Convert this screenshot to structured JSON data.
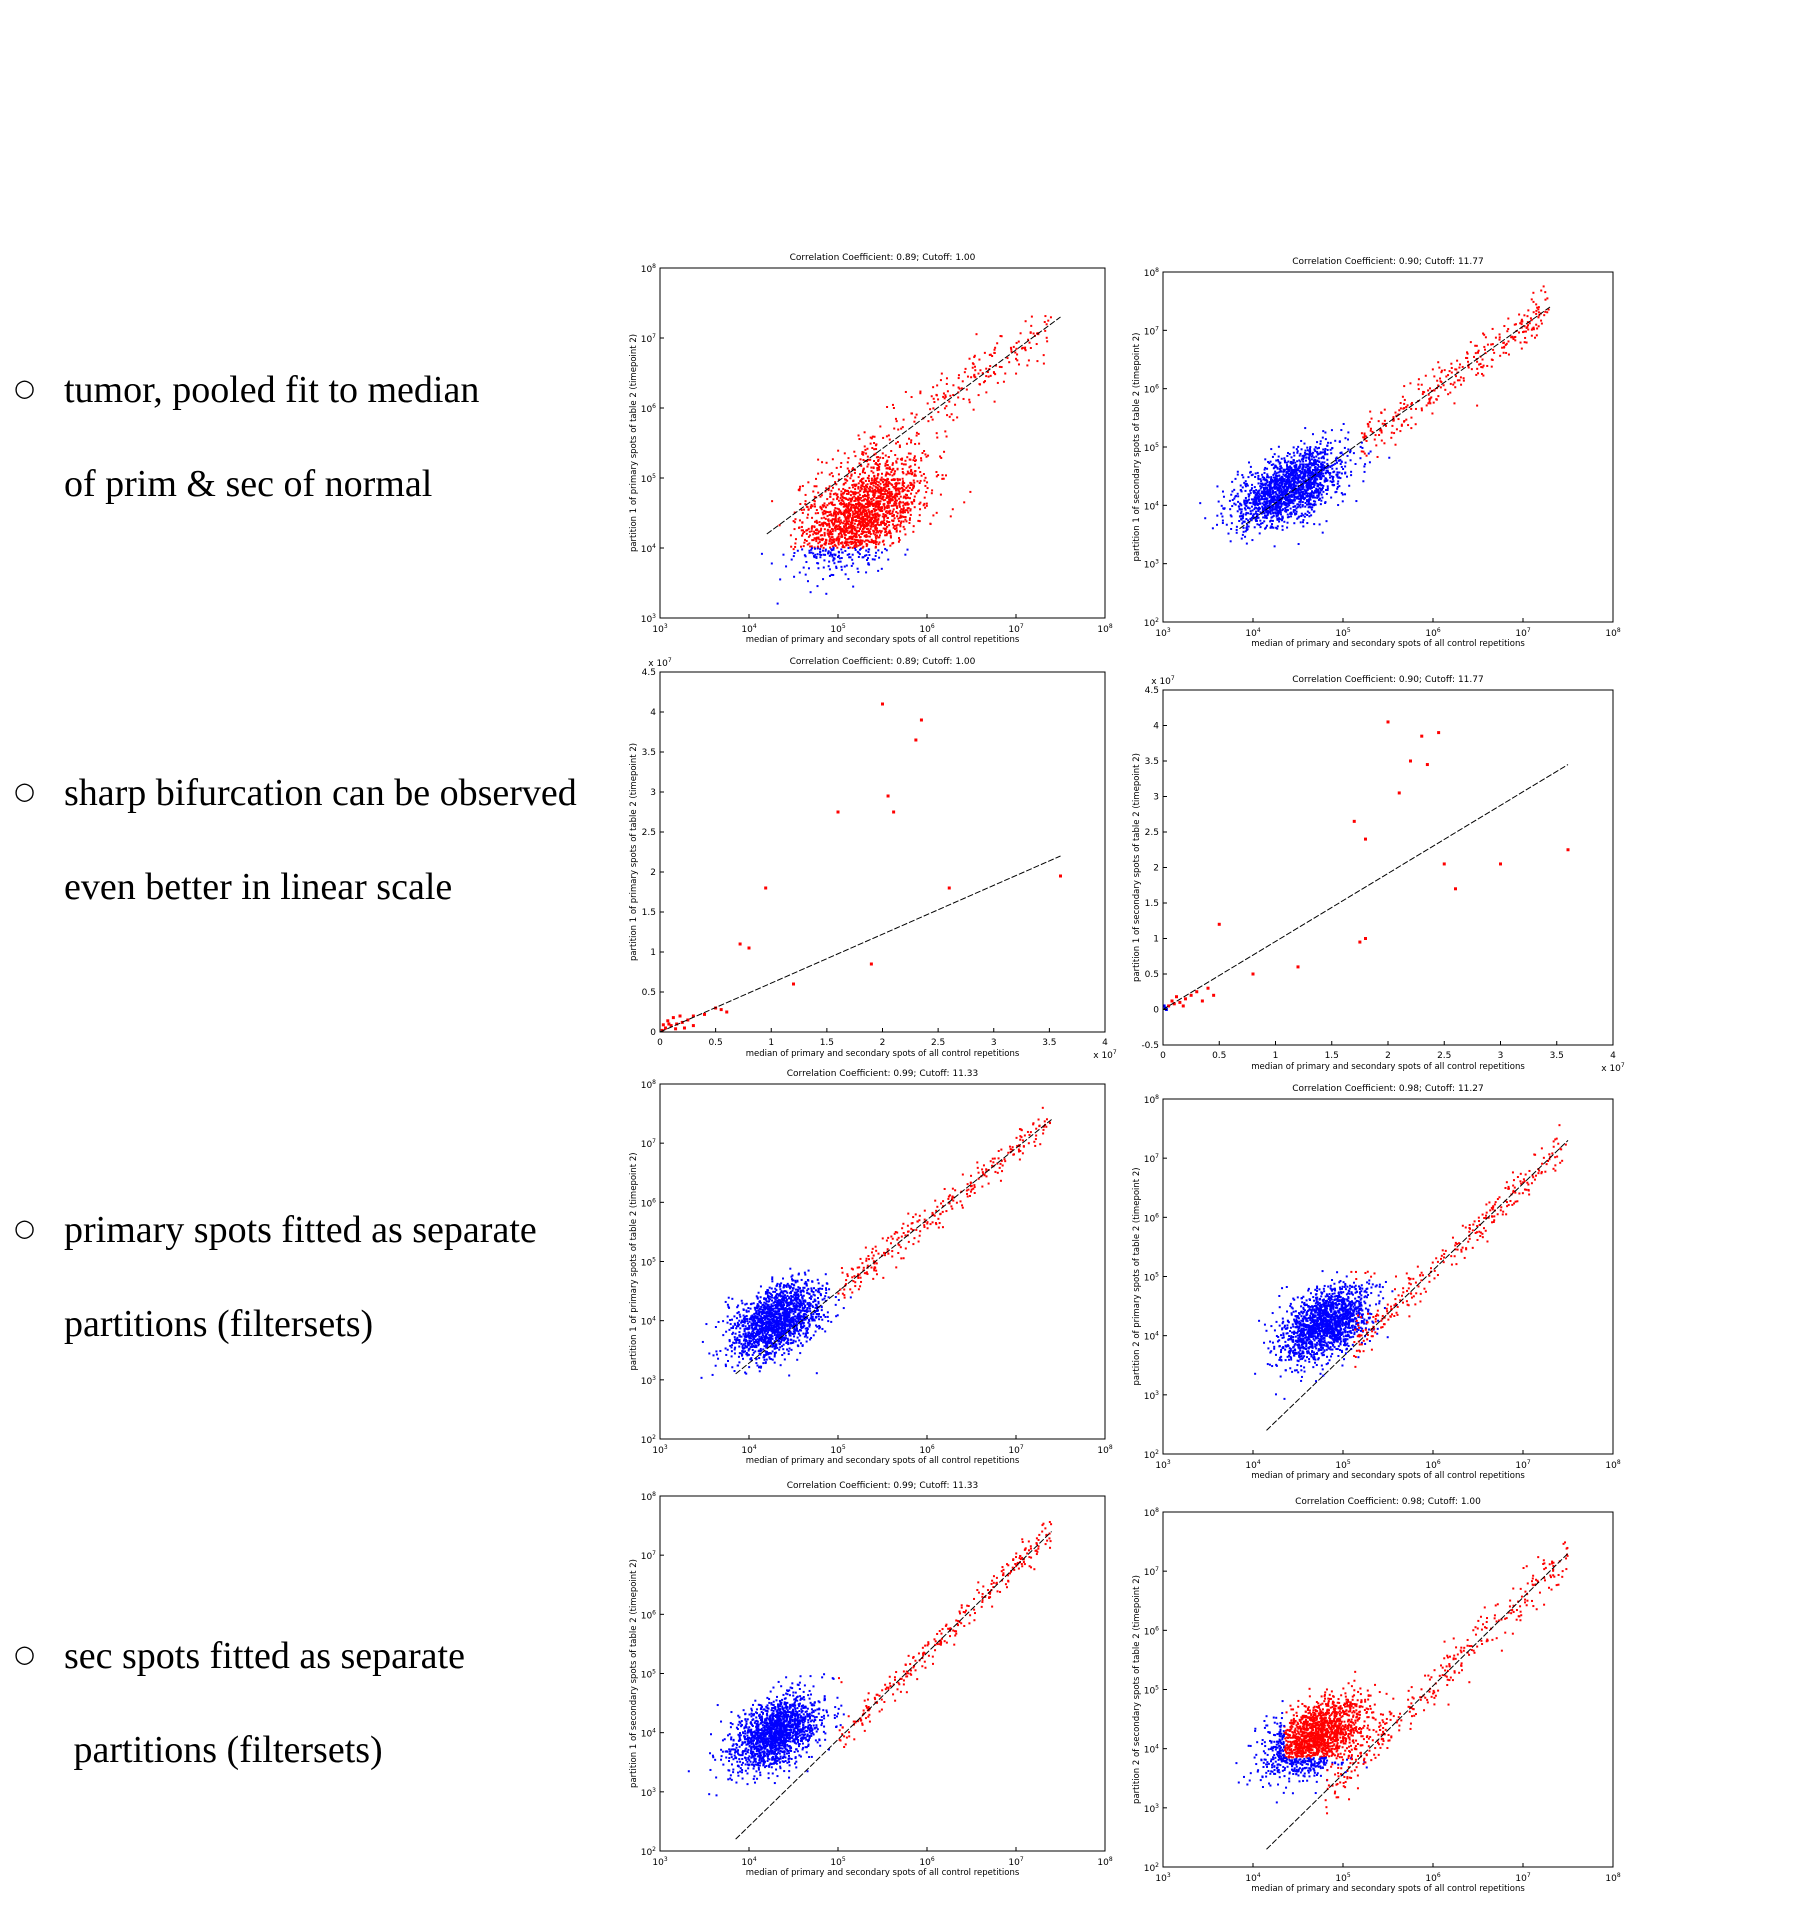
{
  "bullets": [
    {
      "marker": "○",
      "lines": [
        "tumor, pooled fit to median",
        "of prim & sec of normal"
      ]
    },
    {
      "marker": "○",
      "lines": [
        "sharp bifurcation can be observed",
        "even better in linear scale"
      ]
    },
    {
      "marker": "○",
      "lines": [
        "primary spots fitted as separate",
        "partitions (filtersets)"
      ]
    },
    {
      "marker": "○",
      "lines": [
        "sec spots fitted as separate",
        " partitions (filtersets)"
      ]
    }
  ],
  "colors": {
    "high": "#ff0000",
    "low": "#0000ff",
    "fit": "#000000",
    "axis": "#000000"
  },
  "chart_data": [
    {
      "id": "r1c1",
      "type": "scatter",
      "scale": "log",
      "title": "Correlation Coefficient: 0.89; Cutoff: 1.00",
      "xlabel": "median of primary and secondary spots of all control repetitions",
      "ylabel": "partition 1 of primary spots of table 2 (timepoint 2)",
      "xlim": [
        1000,
        100000000
      ],
      "ylim": [
        1000,
        100000000
      ],
      "xticks": [
        "10^3",
        "10^4",
        "10^5",
        "10^6",
        "10^7",
        "10^8"
      ],
      "yticks": [
        "10^3",
        "10^4",
        "10^5",
        "10^6",
        "10^7",
        "10^8"
      ],
      "cluster": {
        "center": [
          5.3,
          4.5
        ],
        "spread": [
          0.33,
          0.3
        ],
        "count": 1800
      },
      "cutoff": [
        4.0,
        4.0
      ],
      "split_rule": "box",
      "tail": {
        "from": 4.5,
        "to": 7.4,
        "count": 320,
        "spread": 0.22
      },
      "fit": [
        [
          4.2,
          4.2
        ],
        [
          7.5,
          7.3
        ]
      ],
      "legend": "none"
    },
    {
      "id": "r1c2",
      "type": "scatter",
      "scale": "log",
      "title": "Correlation Coefficient: 0.90; Cutoff: 11.77",
      "xlabel": "median of primary and secondary spots of all control repetitions",
      "ylabel": "partition 1 of secondary spots of table 2 (timepoint 2)",
      "xlim": [
        1000,
        100000000
      ],
      "ylim": [
        100,
        100000000
      ],
      "xticks": [
        "10^3",
        "10^4",
        "10^5",
        "10^6",
        "10^7",
        "10^8"
      ],
      "yticks": [
        "10^2",
        "10^3",
        "10^4",
        "10^5",
        "10^6",
        "10^7",
        "10^8"
      ],
      "cluster": {
        "center": [
          4.4,
          4.3
        ],
        "spread": [
          0.3,
          0.28
        ],
        "count": 1800
      },
      "cutoff": [
        5.15,
        5.15
      ],
      "split_rule": "box",
      "tail": {
        "from": 5.2,
        "to": 7.3,
        "count": 300,
        "spread": 0.18
      },
      "fit": [
        [
          3.85,
          3.6
        ],
        [
          7.3,
          7.4
        ]
      ],
      "legend": "none"
    },
    {
      "id": "r2c1",
      "type": "scatter",
      "scale": "linear",
      "title": "Correlation Coefficient: 0.89; Cutoff: 1.00",
      "xlabel": "median of primary and secondary spots of all control repetitions",
      "ylabel": "partition 1 of primary spots of table 2 (timepoint 2)",
      "xlim": [
        0,
        4
      ],
      "ylim": [
        0,
        4.5
      ],
      "xticks": [
        "0",
        "0.5",
        "1",
        "1.5",
        "2",
        "2.5",
        "3",
        "3.5",
        "4"
      ],
      "yticks": [
        "0",
        "0.5",
        "1",
        "1.5",
        "2",
        "2.5",
        "3",
        "3.5",
        "4",
        "4.5"
      ],
      "multiplier": "x 10^7",
      "points": [
        [
          2.0,
          4.1
        ],
        [
          2.35,
          3.9
        ],
        [
          2.3,
          3.65
        ],
        [
          1.6,
          2.75
        ],
        [
          2.05,
          2.95
        ],
        [
          2.1,
          2.75
        ],
        [
          0.95,
          1.8
        ],
        [
          2.6,
          1.8
        ],
        [
          3.6,
          1.95
        ],
        [
          0.8,
          1.05
        ],
        [
          0.72,
          1.1
        ],
        [
          1.9,
          0.85
        ],
        [
          1.2,
          0.6
        ],
        [
          0.5,
          0.3
        ],
        [
          0.55,
          0.28
        ],
        [
          0.6,
          0.25
        ],
        [
          0.4,
          0.22
        ],
        [
          0.3,
          0.2
        ],
        [
          0.25,
          0.15
        ],
        [
          0.2,
          0.12
        ],
        [
          0.15,
          0.1
        ],
        [
          0.1,
          0.08
        ],
        [
          0.12,
          0.18
        ],
        [
          0.05,
          0.05
        ],
        [
          0.08,
          0.1
        ],
        [
          0.18,
          0.2
        ],
        [
          0.22,
          0.05
        ],
        [
          0.3,
          0.08
        ],
        [
          0.02,
          0.02
        ],
        [
          0.03,
          0.09
        ],
        [
          0.07,
          0.14
        ],
        [
          0.14,
          0.04
        ]
      ],
      "fit": [
        [
          0,
          0
        ],
        [
          3.6,
          2.2
        ]
      ],
      "legend": "none"
    },
    {
      "id": "r2c2",
      "type": "scatter",
      "scale": "linear",
      "title": "Correlation Coefficient: 0.90; Cutoff: 11.77",
      "xlabel": "median of primary and secondary spots of all control repetitions",
      "ylabel": "partition 1 of secondary spots of table 2 (timepoint 2)",
      "xlim": [
        0,
        4
      ],
      "ylim": [
        -0.5,
        4.5
      ],
      "xticks": [
        "0",
        "0.5",
        "1",
        "1.5",
        "2",
        "2.5",
        "3",
        "3.5",
        "4"
      ],
      "yticks": [
        "-0.5",
        "0",
        "0.5",
        "1",
        "1.5",
        "2",
        "2.5",
        "3",
        "3.5",
        "4",
        "4.5"
      ],
      "multiplier": "x 10^7",
      "points": [
        [
          2.0,
          4.05
        ],
        [
          2.3,
          3.85
        ],
        [
          2.45,
          3.9
        ],
        [
          2.2,
          3.5
        ],
        [
          2.35,
          3.45
        ],
        [
          2.1,
          3.05
        ],
        [
          1.7,
          2.65
        ],
        [
          1.8,
          2.4
        ],
        [
          2.5,
          2.05
        ],
        [
          2.6,
          1.7
        ],
        [
          3.0,
          2.05
        ],
        [
          3.6,
          2.25
        ],
        [
          1.75,
          0.95
        ],
        [
          1.8,
          1.0
        ],
        [
          0.5,
          1.2
        ],
        [
          1.2,
          0.6
        ],
        [
          0.8,
          0.5
        ],
        [
          0.4,
          0.3
        ],
        [
          0.3,
          0.25
        ],
        [
          0.2,
          0.15
        ],
        [
          0.15,
          0.1
        ],
        [
          0.1,
          0.08
        ],
        [
          0.25,
          0.2
        ],
        [
          0.05,
          0.05
        ],
        [
          0.35,
          0.12
        ],
        [
          0.45,
          0.2
        ],
        [
          0.12,
          0.18
        ],
        [
          0.18,
          0.05
        ],
        [
          0.08,
          0.12
        ]
      ],
      "lowpoints": [
        [
          0.02,
          0.02
        ],
        [
          0.01,
          0.05
        ],
        [
          0.03,
          0.0
        ]
      ],
      "fit": [
        [
          0,
          0
        ],
        [
          3.6,
          3.45
        ]
      ],
      "legend": "none"
    },
    {
      "id": "r3c1",
      "type": "scatter",
      "scale": "log",
      "title": "Correlation Coefficient: 0.99; Cutoff: 11.33",
      "xlabel": "median of primary and secondary spots of all control repetitions",
      "ylabel": "partition 1 of primary spots of table 2 (timepoint 2)",
      "xlim": [
        1000,
        100000000
      ],
      "ylim": [
        100,
        100000000
      ],
      "xticks": [
        "10^3",
        "10^4",
        "10^5",
        "10^6",
        "10^7",
        "10^8"
      ],
      "yticks": [
        "10^2",
        "10^3",
        "10^4",
        "10^5",
        "10^6",
        "10^7",
        "10^8"
      ],
      "cluster": {
        "center": [
          4.3,
          4.0
        ],
        "spread": [
          0.25,
          0.28
        ],
        "count": 1700
      },
      "cutoff": [
        5.0,
        5.0
      ],
      "split_rule": "diag",
      "tail": {
        "from": 5.0,
        "to": 7.4,
        "count": 280,
        "spread": 0.14
      },
      "fit": [
        [
          3.85,
          3.1
        ],
        [
          7.4,
          7.4
        ]
      ],
      "legend": "none"
    },
    {
      "id": "r3c2",
      "type": "scatter",
      "scale": "log",
      "title": "Correlation Coefficient: 0.98; Cutoff: 11.27",
      "xlabel": "median of primary and secondary spots of all control repetitions",
      "ylabel": "partition 2 of primary spots of table 2 (timepoint 2)",
      "xlim": [
        1000,
        100000000
      ],
      "ylim": [
        100,
        100000000
      ],
      "xticks": [
        "10^3",
        "10^4",
        "10^5",
        "10^6",
        "10^7",
        "10^8"
      ],
      "yticks": [
        "10^2",
        "10^3",
        "10^4",
        "10^5",
        "10^6",
        "10^7",
        "10^8"
      ],
      "cluster": {
        "center": [
          4.8,
          4.2
        ],
        "spread": [
          0.25,
          0.28
        ],
        "count": 1700
      },
      "cutoff": [
        5.05,
        4.95
      ],
      "split_rule": "box",
      "tail": {
        "from": 5.1,
        "to": 7.5,
        "count": 280,
        "spread": 0.15
      },
      "fit": [
        [
          4.15,
          2.4
        ],
        [
          7.5,
          7.3
        ]
      ],
      "legend": "none"
    },
    {
      "id": "r4c1",
      "type": "scatter",
      "scale": "log",
      "title": "Correlation Coefficient: 0.99; Cutoff: 11.33",
      "xlabel": "median of primary and secondary spots of all control repetitions",
      "ylabel": "partition 1 of secondary spots of table 2 (timepoint 2)",
      "xlim": [
        1000,
        100000000
      ],
      "ylim": [
        100,
        100000000
      ],
      "xticks": [
        "10^3",
        "10^4",
        "10^5",
        "10^6",
        "10^7",
        "10^8"
      ],
      "yticks": [
        "10^2",
        "10^3",
        "10^4",
        "10^5",
        "10^6",
        "10^7",
        "10^8"
      ],
      "cluster": {
        "center": [
          4.3,
          4.0
        ],
        "spread": [
          0.25,
          0.28
        ],
        "count": 1700
      },
      "cutoff": [
        5.0,
        5.0
      ],
      "split_rule": "diag",
      "tail": {
        "from": 5.0,
        "to": 7.4,
        "count": 280,
        "spread": 0.14
      },
      "fit": [
        [
          3.85,
          2.2
        ],
        [
          7.4,
          7.4
        ]
      ],
      "legend": "none"
    },
    {
      "id": "r4c2",
      "type": "scatter",
      "scale": "log",
      "title": "Correlation Coefficient: 0.98; Cutoff: 1.00",
      "xlabel": "median of primary and secondary spots of all control repetitions",
      "ylabel": "partition 2 of secondary spots of table 2 (timepoint 2)",
      "xlim": [
        1000,
        100000000
      ],
      "ylim": [
        100,
        100000000
      ],
      "xticks": [
        "10^3",
        "10^4",
        "10^5",
        "10^6",
        "10^7",
        "10^8"
      ],
      "yticks": [
        "10^2",
        "10^3",
        "10^4",
        "10^5",
        "10^6",
        "10^7",
        "10^8"
      ],
      "cluster": {
        "center": [
          4.7,
          4.2
        ],
        "spread": [
          0.27,
          0.28
        ],
        "count": 1700
      },
      "cutoff": [
        4.35,
        3.85
      ],
      "split_rule": "box",
      "tail": {
        "from": 4.8,
        "to": 7.5,
        "count": 320,
        "spread": 0.2
      },
      "fit": [
        [
          4.15,
          2.3
        ],
        [
          7.5,
          7.3
        ]
      ],
      "legend": "none"
    }
  ]
}
